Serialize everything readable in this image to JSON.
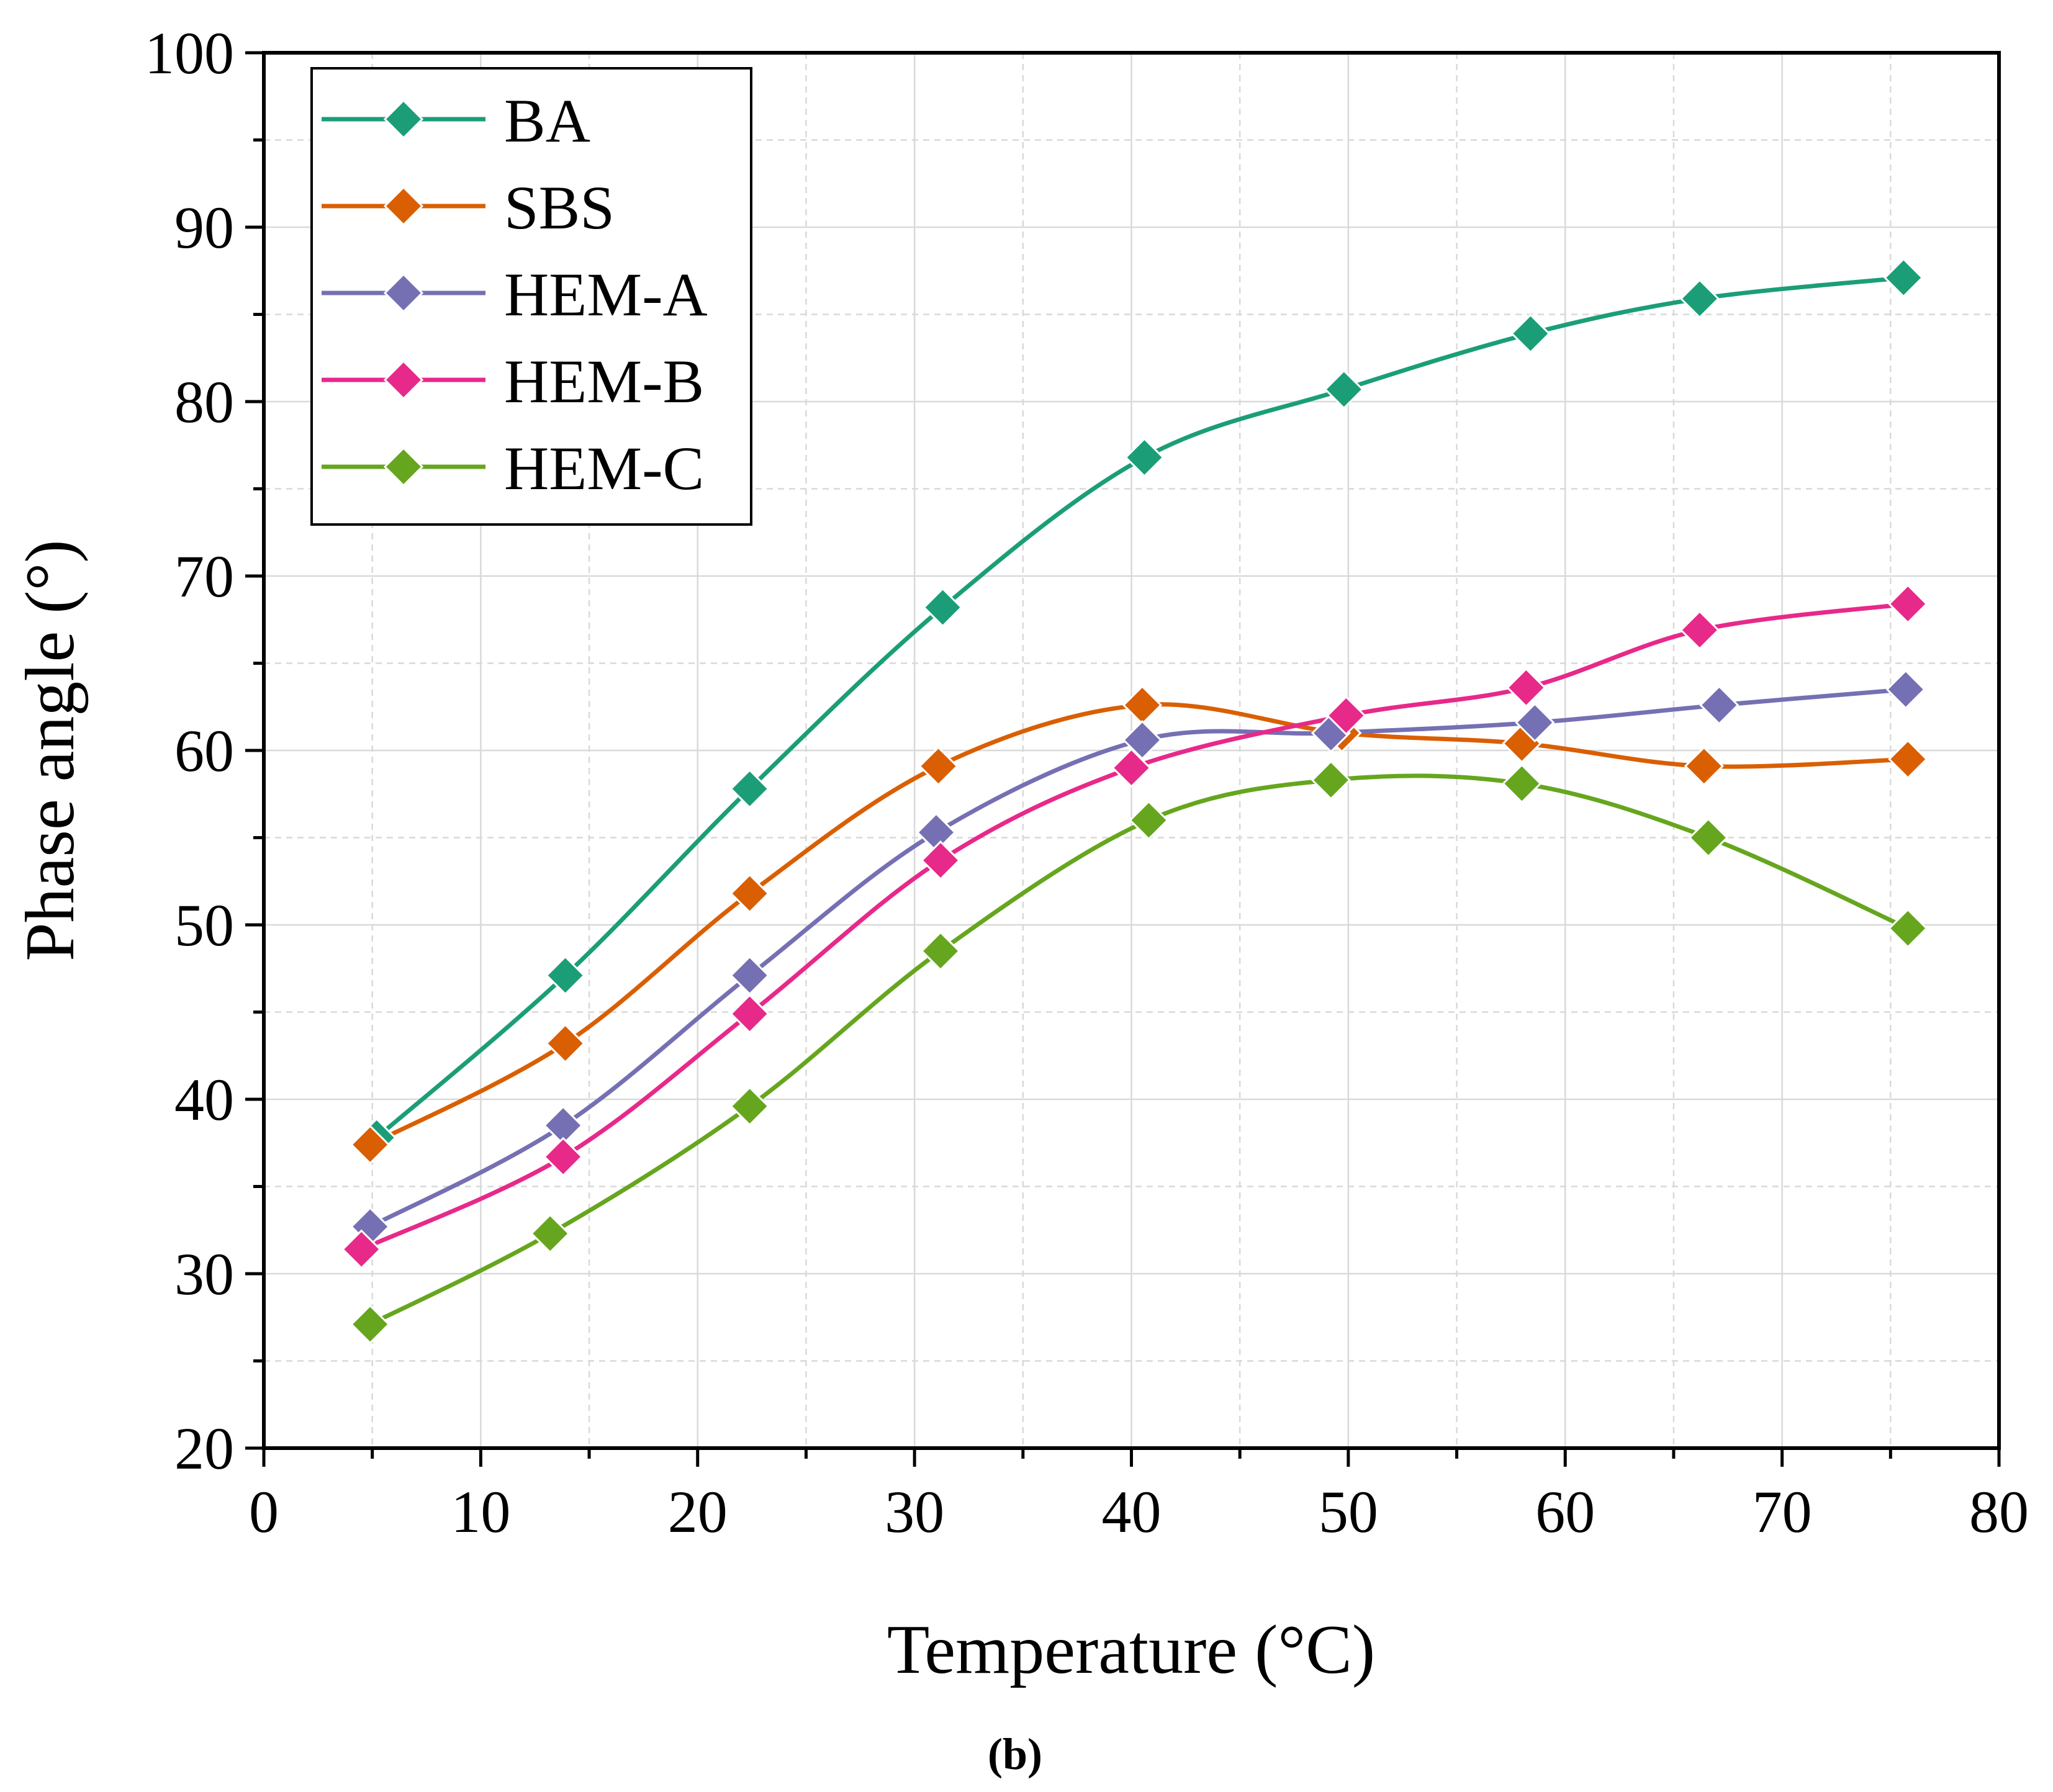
{
  "chart_data": {
    "type": "line",
    "title": "",
    "xlabel": "Temperature (°C)",
    "ylabel": "Phase angle  (°)",
    "xlim": [
      0,
      80
    ],
    "ylim": [
      20,
      100
    ],
    "xticks": [
      "0",
      "10",
      "20",
      "30",
      "40",
      "50",
      "60",
      "70",
      "80"
    ],
    "yticks": [
      "20",
      "30",
      "40",
      "50",
      "60",
      "70",
      "80",
      "90",
      "100"
    ],
    "grid": true,
    "legend_position": "top-left",
    "panel_label": "(b)",
    "series": [
      {
        "name": "BA",
        "color": "#1b9e77",
        "x": [
          5.2,
          13.9,
          22.4,
          31.3,
          40.6,
          49.8,
          58.4,
          66.2,
          75.6
        ],
        "y": [
          37.8,
          47.1,
          57.8,
          68.2,
          76.8,
          80.7,
          83.9,
          85.9,
          87.1
        ]
      },
      {
        "name": "SBS",
        "color": "#d95f02",
        "x": [
          4.9,
          13.9,
          22.4,
          31.1,
          40.5,
          49.7,
          58.0,
          66.4,
          75.8
        ],
        "y": [
          37.4,
          43.2,
          51.8,
          59.1,
          62.6,
          61.0,
          60.4,
          59.1,
          59.5
        ]
      },
      {
        "name": "HEM-A",
        "color": "#7570b3",
        "x": [
          4.9,
          13.8,
          22.4,
          31.0,
          40.5,
          49.2,
          58.6,
          67.1,
          75.7
        ],
        "y": [
          32.7,
          38.5,
          47.1,
          55.3,
          60.6,
          61.0,
          61.6,
          62.6,
          63.5
        ]
      },
      {
        "name": "HEM-B",
        "color": "#e7298a",
        "x": [
          4.5,
          13.8,
          22.4,
          31.2,
          40.0,
          49.9,
          58.2,
          66.2,
          75.8
        ],
        "y": [
          31.4,
          36.7,
          44.9,
          53.7,
          59.0,
          62.0,
          63.6,
          66.9,
          68.4
        ]
      },
      {
        "name": "HEM-C",
        "color": "#66a61e",
        "x": [
          4.9,
          13.2,
          22.4,
          31.2,
          40.8,
          49.2,
          58.0,
          66.6,
          75.8
        ],
        "y": [
          27.1,
          32.3,
          39.6,
          48.5,
          56.0,
          58.3,
          58.1,
          55.0,
          49.8
        ]
      }
    ]
  }
}
